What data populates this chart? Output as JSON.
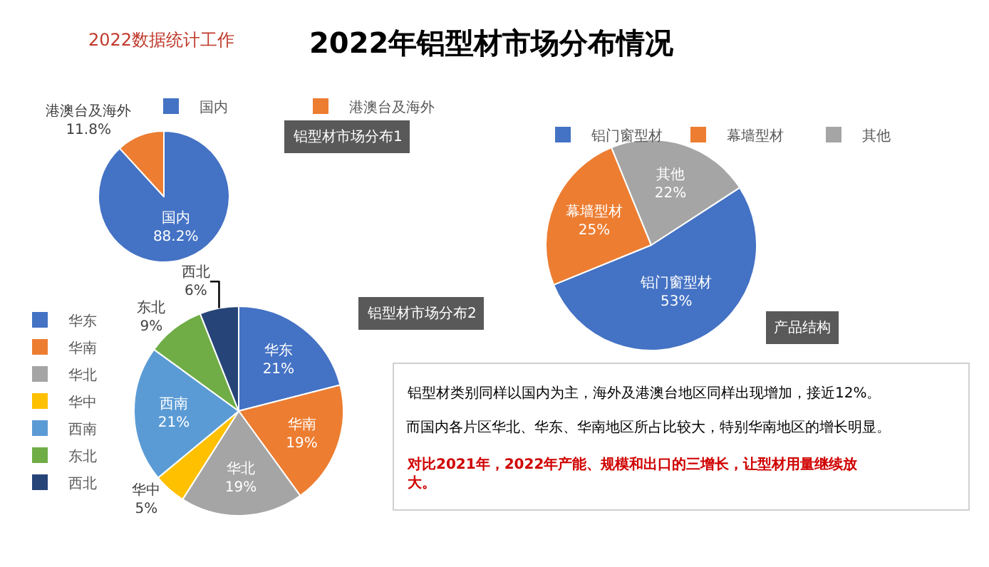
{
  "chart_data": [
    {
      "type": "other",
      "title": "2022年铝型材市场分布情况",
      "subtitle": "2022数据统计工作",
      "annotations": [
        "铝型材类别同样以国内为主，海外及港澳台地区同样出现增加，接近12%。",
        "而国内各片区华北、华东、华南地区所占比较大，特别华南地区的增长明显。",
        "对比2021年，2022年产能、规模和出口的三增长，让型材用量继续放大。"
      ]
    },
    {
      "type": "pie",
      "title": "铝型材市场分布1",
      "categories": [
        "国内",
        "港澳台及海外"
      ],
      "values": [
        88.2,
        11.8
      ],
      "value_labels": [
        "88.2%",
        "11.8%"
      ],
      "colors": [
        "#4472c4",
        "#ed7d31"
      ],
      "legend": "top"
    },
    {
      "type": "pie",
      "title": "铝型材市场分布2",
      "categories": [
        "华东",
        "华南",
        "华北",
        "华中",
        "西南",
        "东北",
        "西北"
      ],
      "values": [
        21,
        19,
        19,
        5,
        21,
        9,
        6
      ],
      "value_labels": [
        "21%",
        "19%",
        "19%",
        "5%",
        "21%",
        "9%",
        "6%"
      ],
      "colors": [
        "#4472c4",
        "#ed7d31",
        "#a5a5a5",
        "#ffc000",
        "#5b9bd5",
        "#70ad47",
        "#264478"
      ],
      "legend": "top"
    },
    {
      "type": "pie",
      "title": "产品结构",
      "categories": [
        "铝门窗型材",
        "幕墙型材",
        "其他"
      ],
      "values": [
        53,
        25,
        22
      ],
      "value_labels": [
        "53%",
        "25%",
        "22%"
      ],
      "colors": [
        "#4472c4",
        "#ed7d31",
        "#a5a5a5"
      ],
      "legend": "top"
    }
  ]
}
